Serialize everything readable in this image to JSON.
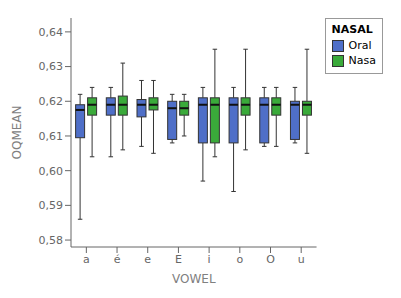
{
  "chart_data": {
    "type": "box",
    "xlabel": "VOWEL",
    "ylabel": "OQMEAN",
    "legend_title": "NASAL",
    "legend": "upper right",
    "grid": false,
    "categories": [
      "a",
      "é",
      "e",
      "E",
      "i",
      "o",
      "O",
      "u"
    ],
    "ylim": [
      0.578,
      0.644
    ],
    "yticks": [
      {
        "value": 0.58,
        "label": "0,58"
      },
      {
        "value": 0.59,
        "label": "0,59"
      },
      {
        "value": 0.6,
        "label": "0,60"
      },
      {
        "value": 0.61,
        "label": "0,61"
      },
      {
        "value": 0.62,
        "label": "0,62"
      },
      {
        "value": 0.63,
        "label": "0,63"
      },
      {
        "value": 0.64,
        "label": "0,64"
      }
    ],
    "series": [
      {
        "name": "Oral",
        "color": "#4f6fc8",
        "values": [
          {
            "whislo": 0.586,
            "q1": 0.6095,
            "med": 0.6175,
            "q3": 0.619,
            "whishi": 0.622
          },
          {
            "whislo": 0.604,
            "q1": 0.616,
            "med": 0.619,
            "q3": 0.621,
            "whishi": 0.624
          },
          {
            "whislo": 0.607,
            "q1": 0.6155,
            "med": 0.619,
            "q3": 0.6205,
            "whishi": 0.626
          },
          {
            "whislo": 0.608,
            "q1": 0.609,
            "med": 0.618,
            "q3": 0.62,
            "whishi": 0.622
          },
          {
            "whislo": 0.597,
            "q1": 0.608,
            "med": 0.619,
            "q3": 0.621,
            "whishi": 0.624
          },
          {
            "whislo": 0.594,
            "q1": 0.608,
            "med": 0.619,
            "q3": 0.621,
            "whishi": 0.624
          },
          {
            "whislo": 0.607,
            "q1": 0.608,
            "med": 0.619,
            "q3": 0.621,
            "whishi": 0.624
          },
          {
            "whislo": 0.608,
            "q1": 0.609,
            "med": 0.619,
            "q3": 0.62,
            "whishi": 0.624
          }
        ]
      },
      {
        "name": "Nasa",
        "color": "#3aaa3a",
        "values": [
          {
            "whislo": 0.604,
            "q1": 0.616,
            "med": 0.619,
            "q3": 0.621,
            "whishi": 0.624
          },
          {
            "whislo": 0.606,
            "q1": 0.616,
            "med": 0.619,
            "q3": 0.6215,
            "whishi": 0.631
          },
          {
            "whislo": 0.605,
            "q1": 0.6175,
            "med": 0.619,
            "q3": 0.621,
            "whishi": 0.626
          },
          {
            "whislo": 0.61,
            "q1": 0.616,
            "med": 0.618,
            "q3": 0.62,
            "whishi": 0.622
          },
          {
            "whislo": 0.604,
            "q1": 0.608,
            "med": 0.619,
            "q3": 0.621,
            "whishi": 0.635
          },
          {
            "whislo": 0.606,
            "q1": 0.616,
            "med": 0.619,
            "q3": 0.621,
            "whishi": 0.635
          },
          {
            "whislo": 0.607,
            "q1": 0.616,
            "med": 0.619,
            "q3": 0.621,
            "whishi": 0.624
          },
          {
            "whislo": 0.605,
            "q1": 0.616,
            "med": 0.619,
            "q3": 0.62,
            "whishi": 0.635
          }
        ]
      }
    ]
  }
}
